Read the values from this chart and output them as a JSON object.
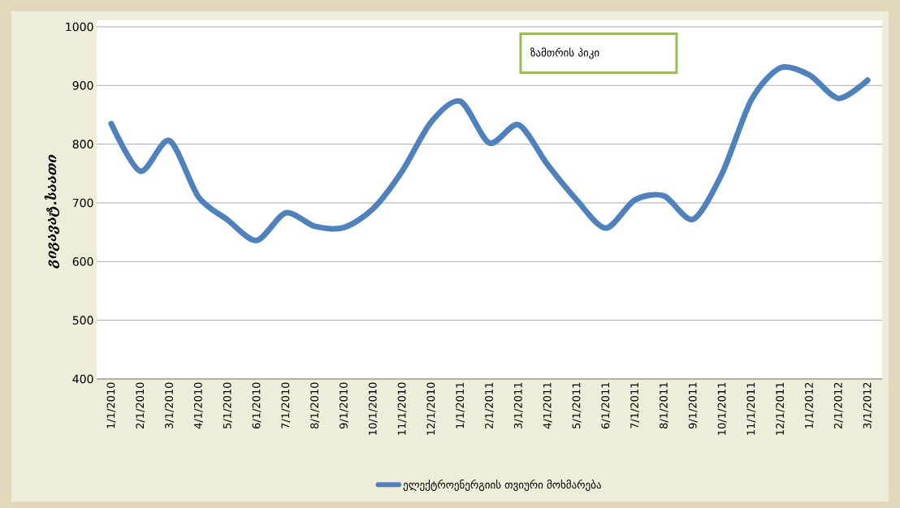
{
  "chart_data": {
    "type": "line",
    "ylabel": "გიგავატ.საათი",
    "categories": [
      "1/1/2010",
      "2/1/2010",
      "3/1/2010",
      "4/1/2010",
      "5/1/2010",
      "6/1/2010",
      "7/1/2010",
      "8/1/2010",
      "9/1/2010",
      "10/1/2010",
      "11/1/2010",
      "12/1/2010",
      "1/1/2011",
      "2/1/2011",
      "3/1/2011",
      "4/1/2011",
      "5/1/2011",
      "6/1/2011",
      "7/1/2011",
      "8/1/2011",
      "9/1/2011",
      "10/1/2011",
      "11/1/2011",
      "12/1/2011",
      "1/1/2012",
      "2/1/2012",
      "3/1/2012"
    ],
    "series": [
      {
        "name": "ელექტროენერგიის თვიური მოხმარება",
        "color": "#4f81bd",
        "values": [
          835,
          754,
          806,
          710,
          671,
          636,
          683,
          660,
          658,
          690,
          754,
          838,
          873,
          802,
          833,
          765,
          705,
          657,
          705,
          712,
          672,
          750,
          875,
          930,
          918,
          878,
          909
        ]
      }
    ],
    "ylim": [
      400,
      1000
    ],
    "yticks": [
      400,
      500,
      600,
      700,
      800,
      900,
      1000
    ],
    "grid": "y",
    "legend": "bottom",
    "marker": "none",
    "line_style": "solid",
    "annotations": [
      "ზამთრის პიკი"
    ]
  }
}
